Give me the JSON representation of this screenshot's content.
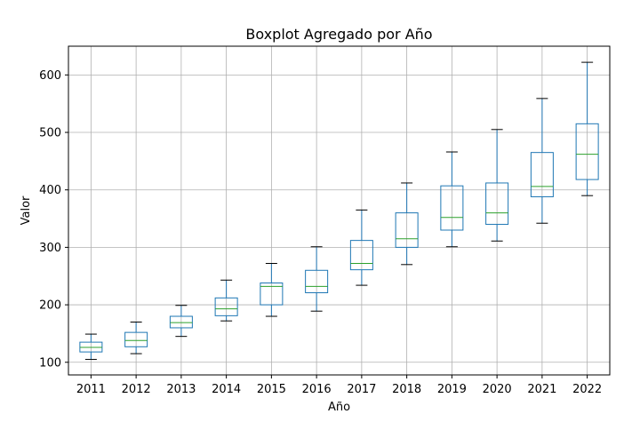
{
  "chart_data": {
    "type": "boxplot",
    "title": "Boxplot Agregado por Año",
    "xlabel": "Año",
    "ylabel": "Valor",
    "ylim": [
      78,
      650
    ],
    "yticks": [
      100,
      200,
      300,
      400,
      500,
      600
    ],
    "grid": true,
    "categories": [
      "2011",
      "2012",
      "2013",
      "2014",
      "2015",
      "2016",
      "2017",
      "2018",
      "2019",
      "2020",
      "2021",
      "2022"
    ],
    "boxes": [
      {
        "whisker_low": 105,
        "q1": 118,
        "median": 126,
        "q3": 135,
        "whisker_high": 149
      },
      {
        "whisker_low": 115,
        "q1": 127,
        "median": 138,
        "q3": 152,
        "whisker_high": 170
      },
      {
        "whisker_low": 145,
        "q1": 160,
        "median": 169,
        "q3": 180,
        "whisker_high": 199
      },
      {
        "whisker_low": 172,
        "q1": 181,
        "median": 193,
        "q3": 212,
        "whisker_high": 243
      },
      {
        "whisker_low": 180,
        "q1": 200,
        "median": 232,
        "q3": 238,
        "whisker_high": 272
      },
      {
        "whisker_low": 189,
        "q1": 221,
        "median": 232,
        "q3": 260,
        "whisker_high": 301
      },
      {
        "whisker_low": 234,
        "q1": 261,
        "median": 272,
        "q3": 312,
        "whisker_high": 365
      },
      {
        "whisker_low": 270,
        "q1": 300,
        "median": 315,
        "q3": 360,
        "whisker_high": 412
      },
      {
        "whisker_low": 301,
        "q1": 330,
        "median": 352,
        "q3": 407,
        "whisker_high": 466
      },
      {
        "whisker_low": 311,
        "q1": 340,
        "median": 360,
        "q3": 412,
        "whisker_high": 505
      },
      {
        "whisker_low": 342,
        "q1": 388,
        "median": 406,
        "q3": 465,
        "whisker_high": 559
      },
      {
        "whisker_low": 390,
        "q1": 418,
        "median": 462,
        "q3": 515,
        "whisker_high": 622
      }
    ],
    "colors": {
      "box": "#1f77b4",
      "median": "#2ca02c",
      "whisker_cap": "#000000",
      "grid": "#b0b0b0",
      "axes": "#000000"
    }
  }
}
